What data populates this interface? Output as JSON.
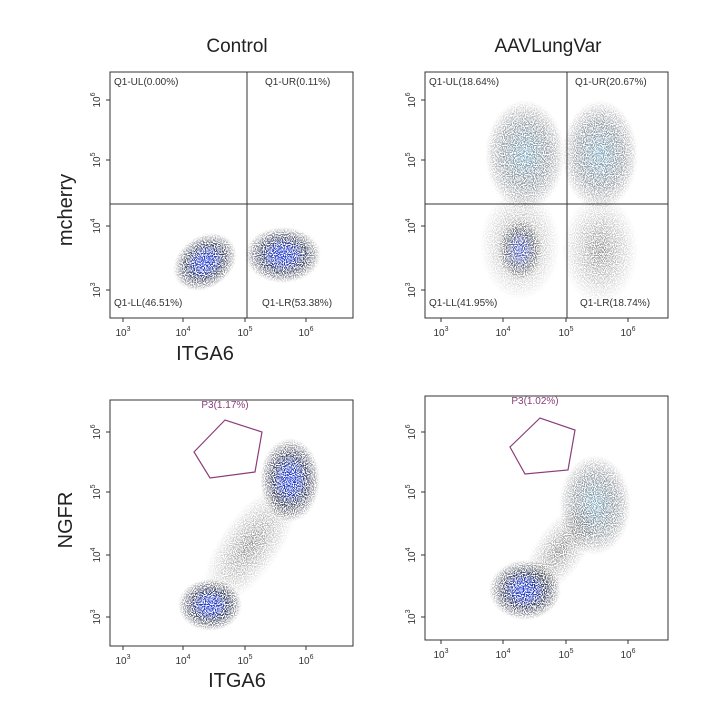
{
  "columns": [
    "Control",
    "AAVLungVar"
  ],
  "rows": [
    {
      "y_label": "mcherry",
      "x_label": "ITGA6"
    },
    {
      "y_label": "NGFR",
      "x_label": "ITGA6"
    }
  ],
  "ticks": {
    "base": "10",
    "x": [
      "3",
      "4",
      "5",
      "6"
    ],
    "y": [
      "6",
      "5",
      "4",
      "3"
    ]
  },
  "plots": [
    {
      "quadrants": [
        "Q1-UL(0.00%)",
        "Q1-UR(0.11%)",
        "Q1-LL(46.51%)",
        "Q1-LR(53.38%)"
      ]
    },
    {
      "quadrants": [
        "Q1-UL(18.64%)",
        "Q1-UR(20.67%)",
        "Q1-LL(41.95%)",
        "Q1-LR(18.74%)"
      ]
    },
    {
      "gate": "P3(1.17%)"
    },
    {
      "gate": "P3(1.02%)"
    }
  ]
}
